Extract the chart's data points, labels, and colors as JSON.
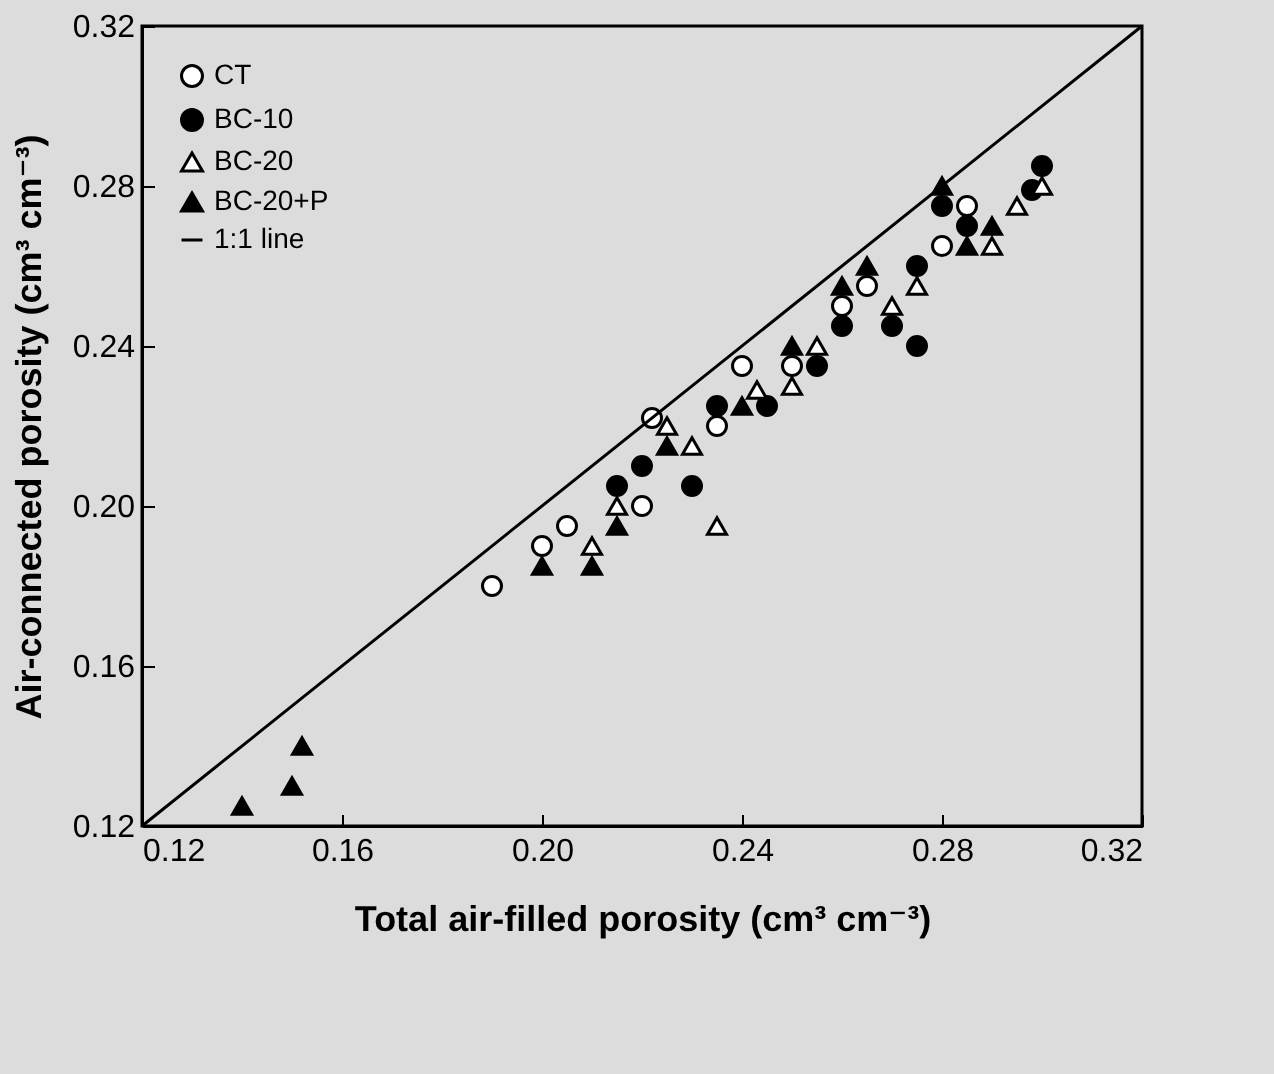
{
  "chart_data": {
    "type": "scatter",
    "xlabel": "Total air-filled porosity (cm³ cm⁻³)",
    "ylabel": "Air-connected porosity (cm³ cm⁻³)",
    "xlim": [
      0.12,
      0.32
    ],
    "ylim": [
      0.12,
      0.32
    ],
    "xticks": [
      0.12,
      0.16,
      {
        "value": 0.2,
        "label": "0.20"
      },
      0.24,
      0.28,
      0.32
    ],
    "yticks": [
      0.12,
      0.16,
      {
        "value": 0.2,
        "label": "0.20"
      },
      0.24,
      0.28,
      0.32
    ],
    "legend": "top left",
    "series": [
      {
        "name": "CT",
        "color": "#ffffff",
        "marker": "circle",
        "x": [
          0.19,
          0.2,
          0.205,
          0.22,
          0.222,
          0.235,
          0.24,
          0.25,
          0.26,
          0.265,
          0.28,
          0.285
        ],
        "values": [
          0.18,
          0.19,
          0.195,
          0.2,
          0.222,
          0.22,
          0.235,
          0.235,
          0.25,
          0.255,
          0.265,
          0.275
        ]
      },
      {
        "name": "BC-10",
        "color": "#000000",
        "marker": "circle",
        "x": [
          0.215,
          0.22,
          0.23,
          0.235,
          0.245,
          0.255,
          0.26,
          0.27,
          0.275,
          0.275,
          0.285,
          0.298,
          0.3,
          0.28
        ],
        "values": [
          0.205,
          0.21,
          0.205,
          0.225,
          0.225,
          0.235,
          0.245,
          0.245,
          0.24,
          0.26,
          0.27,
          0.279,
          0.285,
          0.275
        ]
      },
      {
        "name": "BC-20",
        "color": "#ffffff",
        "marker": "triangle",
        "x": [
          0.21,
          0.215,
          0.225,
          0.23,
          0.235,
          0.243,
          0.25,
          0.255,
          0.27,
          0.275,
          0.29,
          0.295,
          0.3
        ],
        "values": [
          0.19,
          0.2,
          0.22,
          0.215,
          0.195,
          0.229,
          0.23,
          0.24,
          0.25,
          0.255,
          0.265,
          0.275,
          0.28
        ]
      },
      {
        "name": "BC-20+P",
        "color": "#000000",
        "marker": "triangle",
        "x": [
          0.14,
          0.15,
          0.152,
          0.2,
          0.21,
          0.215,
          0.225,
          0.24,
          0.25,
          0.26,
          0.265,
          0.28,
          0.285,
          0.29
        ],
        "values": [
          0.125,
          0.13,
          0.14,
          0.185,
          0.185,
          0.195,
          0.215,
          0.225,
          0.24,
          0.255,
          0.26,
          0.28,
          0.265,
          0.27
        ]
      },
      {
        "name": "1:1 line",
        "type": "line",
        "color": "#000000",
        "x": [
          0.12,
          0.32
        ],
        "values": [
          0.12,
          0.32
        ]
      }
    ]
  }
}
